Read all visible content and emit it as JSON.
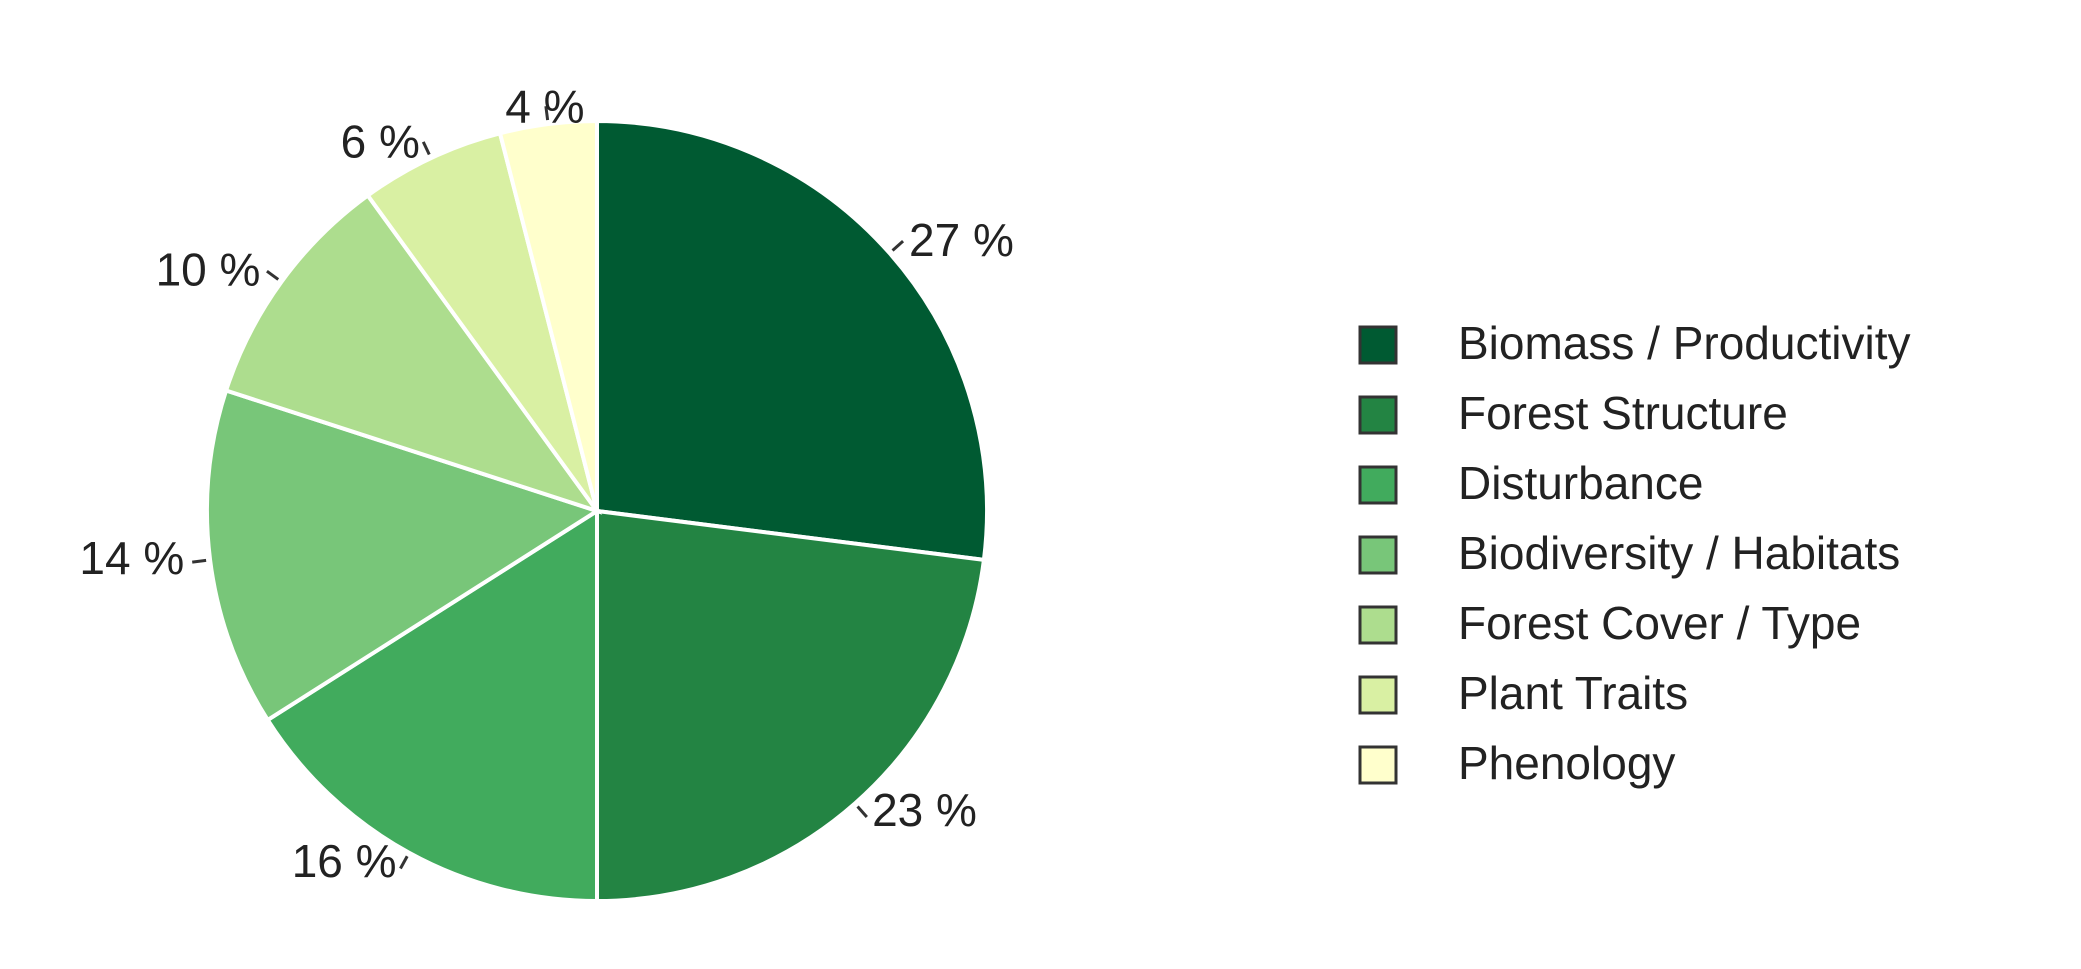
{
  "chart_data": {
    "type": "pie",
    "categories": [
      "Biomass / Productivity",
      "Forest Structure",
      "Disturbance",
      "Biodiversity / Habitats",
      "Forest Cover / Type",
      "Plant Traits",
      "Phenology"
    ],
    "values": [
      27,
      23,
      16,
      14,
      10,
      6,
      4
    ],
    "value_labels": [
      "27 %",
      "23 %",
      "16 %",
      "14 %",
      "10 %",
      "6 %",
      "4 %"
    ],
    "colors": [
      "#005a32",
      "#238443",
      "#41ab5d",
      "#78c679",
      "#addd8e",
      "#d9f0a3",
      "#ffffcc"
    ],
    "legend": "right"
  }
}
